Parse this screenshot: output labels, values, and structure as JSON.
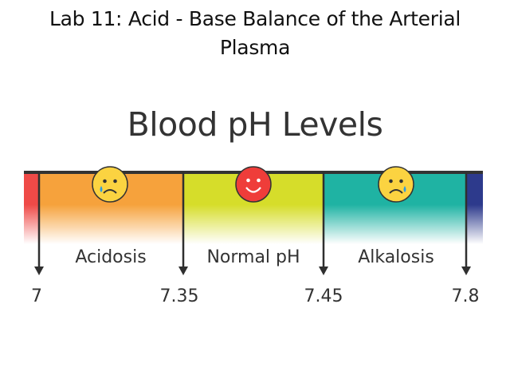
{
  "slide": {
    "title_line1": "Lab 11: Acid - Base Balance of the Arterial",
    "title_line2": "Plasma"
  },
  "diagram": {
    "title": "Blood pH Levels",
    "zones": [
      {
        "label": "Acidosis",
        "from": 7.0,
        "to": 7.35,
        "face": "sad",
        "color": "#f6a23c"
      },
      {
        "label": "Normal pH",
        "from": 7.35,
        "to": 7.45,
        "face": "happy",
        "color": "#d6dd2a"
      },
      {
        "label": "Alkalosis",
        "from": 7.45,
        "to": 7.8,
        "face": "sad",
        "color": "#1fb3a3"
      }
    ],
    "markers": [
      "7",
      "7.35",
      "7.45",
      "7.8"
    ],
    "colors": {
      "left_edge": "#ef4a47",
      "right_edge": "#2d3a8c",
      "top_line": "#333333",
      "arrow": "#2f2f2f",
      "sad_face": "#fbd341",
      "happy_face": "#ef3d3a"
    }
  }
}
